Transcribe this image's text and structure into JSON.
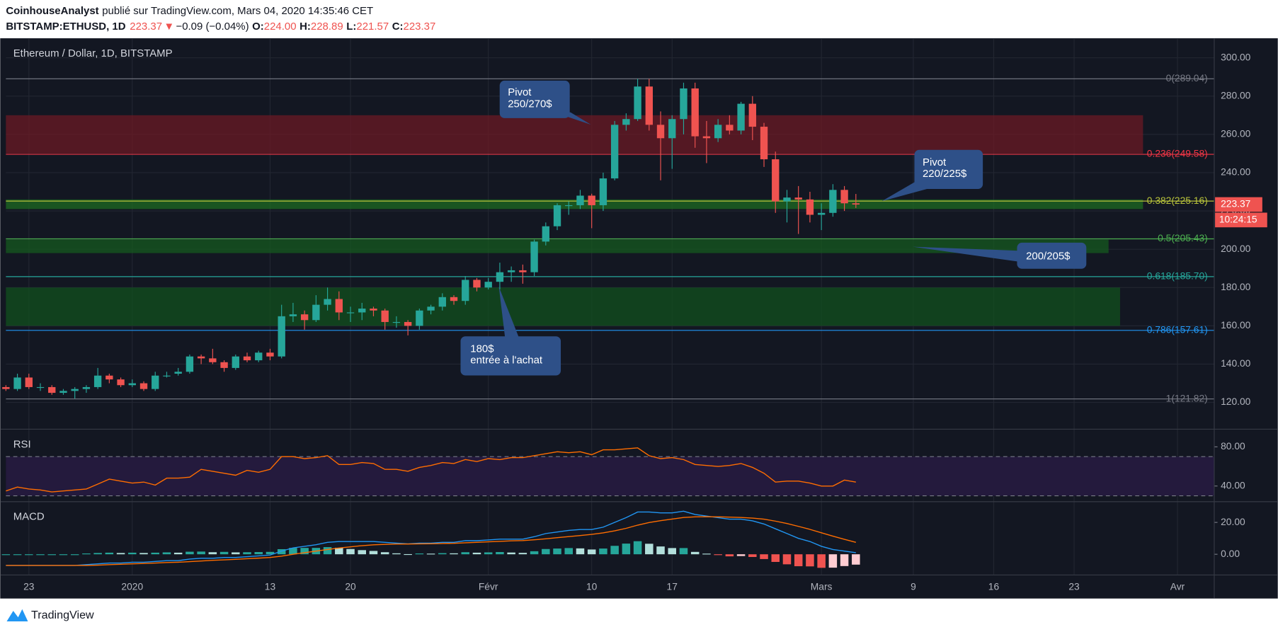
{
  "header": {
    "author": "CoinhouseAnalyst",
    "published": "publié sur TradingView.com, Mars 04, 2020 14:35:46 CET",
    "symbol": "BITSTAMP:ETHUSD, 1D",
    "last": "223.37",
    "arrow": "▼",
    "change": "−0.09 (−0.04%)",
    "o_label": "O:",
    "o": "224.00",
    "h_label": "H:",
    "h": "228.89",
    "l_label": "L:",
    "l": "221.57",
    "c_label": "C:",
    "c": "223.37"
  },
  "annotations": [
    {
      "lines": [
        "Pivot",
        "250/270$"
      ]
    },
    {
      "lines": [
        "Pivot",
        "220/225$"
      ]
    },
    {
      "lines": [
        "200/205$"
      ]
    },
    {
      "lines": [
        "180$",
        "entrée à l'achat"
      ]
    }
  ],
  "footer": "TradingView",
  "countdown": "10:24:15",
  "chart_data": [
    {
      "type": "candlestick",
      "title": "Ethereum / Dollar, 1D, BITSTAMP",
      "up_color": "#26a69a",
      "down_color": "#ef5350",
      "grid": true,
      "x": [
        0,
        1,
        2,
        3,
        4,
        5,
        6,
        7,
        8,
        9,
        10,
        11,
        12,
        13,
        14,
        15,
        16,
        17,
        18,
        19,
        20,
        21,
        22,
        23,
        24,
        25,
        26,
        27,
        28,
        29,
        30,
        31,
        32,
        33,
        34,
        35,
        36,
        37,
        38,
        39,
        40,
        41,
        42,
        43,
        44,
        45,
        46,
        47,
        48,
        49,
        50,
        51,
        52,
        53,
        54,
        55,
        56,
        57,
        58,
        59,
        60,
        61,
        62,
        63,
        64,
        65,
        66,
        67,
        68,
        69,
        70,
        71,
        72,
        73,
        74
      ],
      "open": [
        128,
        127,
        133,
        128,
        128,
        125,
        126,
        127,
        128,
        134,
        132,
        129,
        130,
        127,
        134,
        135,
        136,
        144,
        143,
        141,
        138,
        144,
        142,
        146,
        144,
        165,
        166,
        163,
        171,
        174,
        167,
        167,
        169,
        168,
        162,
        162,
        160,
        168,
        170,
        175,
        173,
        184,
        180,
        183,
        188,
        189,
        188,
        204,
        212,
        223,
        223,
        228,
        223,
        237,
        265,
        268,
        285,
        265,
        258,
        268,
        284,
        259,
        258,
        265,
        262,
        276,
        264,
        247,
        225,
        227,
        226,
        218,
        219,
        231,
        224
      ],
      "high": [
        129,
        135,
        135,
        130,
        129,
        127,
        128,
        129,
        138,
        135,
        133,
        132,
        131,
        136,
        136,
        138,
        145,
        145,
        148,
        142,
        145,
        146,
        147,
        148,
        171,
        172,
        168,
        176,
        180,
        178,
        170,
        172,
        170,
        169,
        165,
        163,
        169,
        171,
        177,
        176,
        186,
        185,
        185,
        193,
        191,
        192,
        205,
        214,
        224,
        225,
        231,
        229,
        240,
        267,
        271,
        289,
        289,
        272,
        270,
        287,
        287,
        267,
        268,
        270,
        277,
        280,
        266,
        251,
        231,
        233,
        230,
        224,
        234,
        233,
        228.89
      ],
      "low": [
        126,
        126,
        127,
        126,
        124,
        124,
        122,
        125,
        127,
        130,
        128,
        128,
        126,
        126,
        133,
        134,
        135,
        140,
        140,
        136,
        137,
        141,
        141,
        142,
        143,
        162,
        158,
        162,
        168,
        163,
        162,
        163,
        165,
        158,
        159,
        155,
        158,
        166,
        168,
        171,
        171,
        178,
        179,
        179,
        183,
        182,
        186,
        202,
        210,
        218,
        221,
        211,
        220,
        236,
        262,
        267,
        262,
        236,
        242,
        260,
        253,
        245,
        256,
        260,
        260,
        257,
        243,
        219,
        214,
        208,
        214,
        210,
        217,
        220,
        221.57
      ],
      "close": [
        127,
        133,
        128,
        128,
        125,
        126,
        127,
        128,
        134,
        132,
        129,
        130,
        127,
        134,
        134,
        136,
        144,
        143,
        141,
        138,
        144,
        142,
        146,
        144,
        165,
        166,
        163,
        171,
        174,
        167,
        167,
        169,
        168,
        162,
        162,
        160,
        168,
        170,
        175,
        173,
        184,
        180,
        183,
        188,
        189,
        188,
        204,
        212,
        223,
        223,
        228,
        223,
        237,
        265,
        268,
        285,
        265,
        258,
        268,
        284,
        259,
        258,
        265,
        262,
        276,
        264,
        247,
        225,
        227,
        226,
        218,
        219,
        231,
        224,
        223.37
      ],
      "xlim": [
        0,
        105.2
      ],
      "xticks": [
        {
          "value": 2,
          "label": "23"
        },
        {
          "value": 11,
          "label": "2020"
        },
        {
          "value": 23,
          "label": "13"
        },
        {
          "value": 30,
          "label": "20"
        },
        {
          "value": 42,
          "label": "Févr"
        },
        {
          "value": 51,
          "label": "10"
        },
        {
          "value": 58,
          "label": "17"
        },
        {
          "value": 71,
          "label": "Mars"
        },
        {
          "value": 79,
          "label": "9"
        },
        {
          "value": 86,
          "label": "16"
        },
        {
          "value": 93,
          "label": "23"
        },
        {
          "value": 102,
          "label": "Avr"
        }
      ],
      "ylim": [
        106,
        310.2
      ],
      "yticks": [
        {
          "value": 120,
          "label": "120.00"
        },
        {
          "value": 140,
          "label": "140.00"
        },
        {
          "value": 160,
          "label": "160.00"
        },
        {
          "value": 180,
          "label": "180.00"
        },
        {
          "value": 200,
          "label": "200.00"
        },
        {
          "value": 220,
          "label": "220.00"
        },
        {
          "value": 240,
          "label": "240.00"
        },
        {
          "value": 260,
          "label": "260.00"
        },
        {
          "value": 280,
          "label": "280.00"
        },
        {
          "value": 300,
          "label": "300.00"
        }
      ],
      "zones": [
        {
          "from": 250,
          "to": 270,
          "x_end": 99,
          "color": "#6b1a24"
        },
        {
          "from": 221,
          "to": 226,
          "x_end": 99,
          "color": "#1e6b22"
        },
        {
          "from": 198,
          "to": 205,
          "x_end": 96,
          "color": "#16591f"
        },
        {
          "from": 160,
          "to": 180,
          "x_end": 97,
          "color": "#12501d"
        }
      ],
      "levels": [
        {
          "label": "0(289.04)",
          "value": 289.04,
          "color": "#787b86"
        },
        {
          "label": "0.236(249.58)",
          "value": 249.58,
          "color": "#f23645"
        },
        {
          "label": "0.382(225.16)",
          "value": 225.16,
          "color": "#b7c23a"
        },
        {
          "label": "0.5(205.43)",
          "value": 205.43,
          "color": "#4caf50"
        },
        {
          "label": "0.618(185.70)",
          "value": 185.7,
          "color": "#26a69a"
        },
        {
          "label": "0.786(157.61)",
          "value": 157.61,
          "color": "#2196f3"
        },
        {
          "label": "1(121.82)",
          "value": 121.82,
          "color": "#787b86"
        }
      ]
    },
    {
      "type": "line",
      "title": "RSI",
      "color": "#ff6d00",
      "band": [
        30,
        70
      ],
      "band_color": "#241a3d",
      "values": [
        35,
        39,
        37,
        36,
        34,
        35,
        36,
        37,
        42,
        47,
        45,
        43,
        44,
        41,
        48,
        48,
        49,
        57,
        55,
        53,
        51,
        56,
        54,
        57,
        70,
        70,
        68,
        69,
        71,
        62,
        62,
        64,
        63,
        57,
        57,
        55,
        59,
        61,
        64,
        63,
        67,
        65,
        68,
        67,
        69,
        69,
        71,
        73,
        75,
        74,
        75,
        72,
        77,
        77,
        78,
        79,
        71,
        68,
        69,
        67,
        62,
        61,
        60,
        61,
        63,
        59,
        53,
        44,
        45,
        45,
        43,
        40,
        40,
        46,
        44
      ],
      "ylim": [
        24,
        98
      ],
      "yticks": [
        {
          "value": 40,
          "label": "40.00"
        },
        {
          "value": 80,
          "label": "80.00"
        }
      ]
    },
    {
      "type": "macd",
      "title": "MACD",
      "hist_colors": [
        "#26a69a",
        "#b2dfdb",
        "#ef5350",
        "#ffcdd2"
      ],
      "series": [
        {
          "color": "#2196f3",
          "values": [
            -7,
            -7,
            -7,
            -7,
            -7,
            -7,
            -7,
            -6.5,
            -6,
            -5.5,
            -5.5,
            -5,
            -5,
            -4.5,
            -4,
            -4,
            -3,
            -2.5,
            -2.5,
            -2,
            -2,
            -1.5,
            -1,
            -0.5,
            2,
            4,
            5,
            6,
            7.5,
            8,
            8,
            8,
            8,
            7.5,
            7,
            6.5,
            7,
            7,
            7.5,
            7.5,
            8.5,
            8.5,
            9,
            9.5,
            9.5,
            9.5,
            11,
            13,
            14,
            15,
            15.5,
            15.5,
            17,
            20,
            23,
            26.5,
            26.5,
            26,
            26,
            27,
            25,
            24,
            23,
            22,
            22,
            21,
            19,
            16,
            13,
            10,
            8,
            5,
            3,
            2,
            1
          ]
        },
        {
          "color": "#ff6d00",
          "values": [
            -7,
            -7,
            -7,
            -7,
            -7,
            -7,
            -7,
            -7,
            -6.8,
            -6.5,
            -6.3,
            -6,
            -5.8,
            -5.5,
            -5.2,
            -5,
            -4.6,
            -4.2,
            -3.8,
            -3.5,
            -3.2,
            -2.8,
            -2.4,
            -2,
            -1.2,
            0,
            1,
            2,
            3,
            3.9,
            4.7,
            5.4,
            5.9,
            6.2,
            6.4,
            6.4,
            6.5,
            6.6,
            6.8,
            6.9,
            7.2,
            7.5,
            7.8,
            8.1,
            8.4,
            8.6,
            9.1,
            9.7,
            10.4,
            11.1,
            11.8,
            12.5,
            13.4,
            14.7,
            16.3,
            18.3,
            19.9,
            21.1,
            22.1,
            23.1,
            23.5,
            23.6,
            23.5,
            23.3,
            23.1,
            22.7,
            22,
            20.8,
            19.3,
            17.5,
            15.6,
            13.5,
            11.4,
            9.4,
            7.5
          ]
        }
      ],
      "histogram": [
        0,
        0,
        0,
        0,
        0,
        0,
        0,
        0.5,
        0.8,
        1,
        0.8,
        1,
        0.8,
        1,
        1.2,
        1,
        1.6,
        1.7,
        1.3,
        1.5,
        1.2,
        1.3,
        1.4,
        1.5,
        3.2,
        4,
        4,
        4,
        4.5,
        4.1,
        3.3,
        2.6,
        2.1,
        1.3,
        0.6,
        0.1,
        0.5,
        0.4,
        0.7,
        0.6,
        1.3,
        1,
        1.2,
        1.4,
        1.1,
        0.9,
        1.9,
        3.3,
        3.6,
        3.9,
        3.7,
        3,
        3.6,
        5.3,
        6.7,
        8.2,
        6.6,
        4.9,
        3.9,
        3.9,
        1.5,
        0.4,
        -0.5,
        -1.3,
        -1.1,
        -1.7,
        -3,
        -4.8,
        -6.3,
        -7.5,
        -7.6,
        -8.5,
        -8.4,
        -7.4,
        -6.5
      ],
      "ylim": [
        -13,
        33
      ],
      "yticks": [
        {
          "value": 0,
          "label": "0.00"
        },
        {
          "value": 20,
          "label": "20.00"
        }
      ]
    }
  ]
}
